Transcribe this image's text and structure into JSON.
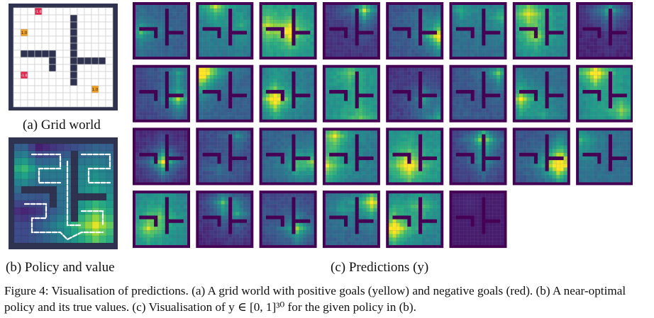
{
  "figure": {
    "caption_prefix": "Figure 4:",
    "caption_text": "Visualisation of predictions. (a) A grid world with positive goals (yellow) and negative goals (red). (b) A near-optimal policy and its true values. (c) Visualisation of y ∈ [0, 1]³⁰ for the given policy in (b).",
    "panels": {
      "a": {
        "label": "(a) Grid world",
        "goal_positive": "1.0",
        "goal_negative": "-1.0"
      },
      "b": {
        "label": "(b) Policy and value"
      },
      "c": {
        "label": "(c) Predictions (y)",
        "grid_count": 30,
        "columns": 8
      }
    }
  },
  "colors": {
    "wall": "#2f3350",
    "floor": "#ffffff",
    "positive_goal": "#e89e2a",
    "negative_goal": "#e2284f",
    "viridis_dark": "#440154",
    "viridis_yellow": "#fde725"
  }
}
